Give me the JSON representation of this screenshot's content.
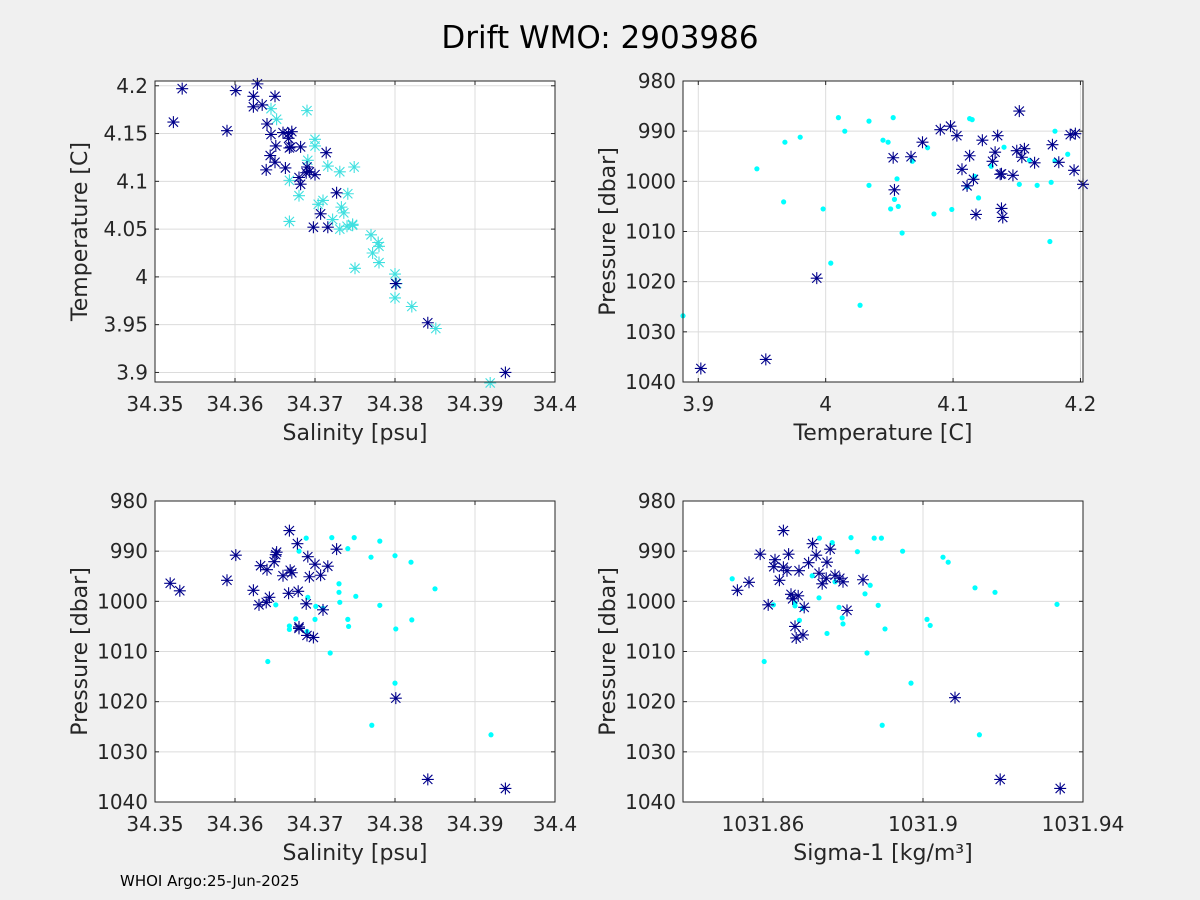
{
  "figure": {
    "title": "Drift WMO: 2903986",
    "footer": "WHOI Argo:25-Jun-2025",
    "colors": {
      "background": "#f0f0f0",
      "axes_bg": "#ffffff",
      "grid": "#dcdcdc",
      "axis": "#262626",
      "star": "#00008b",
      "dot": "#00ffff",
      "star_light": "#40e0e0"
    }
  },
  "chart_data": [
    {
      "type": "scatter",
      "title": "",
      "xlabel": "Salinity [psu]",
      "ylabel": "Temperature [C]",
      "xlim": [
        34.35,
        34.4
      ],
      "ylim": [
        3.89,
        4.205
      ],
      "y_reversed": false,
      "xticks": [
        34.35,
        34.36,
        34.37,
        34.38,
        34.39,
        34.4
      ],
      "xtick_labels": [
        "34.35",
        "34.36",
        "34.37",
        "34.38",
        "34.39",
        "34.4"
      ],
      "yticks": [
        3.9,
        3.95,
        4,
        4.05,
        4.1,
        4.15,
        4.2
      ],
      "ytick_labels": [
        "3.9",
        "3.95",
        "4",
        "4.05",
        "4.1",
        "4.15",
        "4.2"
      ],
      "grid": true,
      "series": [
        {
          "marker": "star",
          "color": "#00008b",
          "x": [
            34.3523,
            34.3534,
            34.359,
            34.3601,
            34.3623,
            34.3623,
            34.3628,
            34.3634,
            34.3639,
            34.3644,
            34.3645,
            34.365,
            34.365,
            34.3651,
            34.366,
            34.3663,
            34.3667,
            34.3668,
            34.367,
            34.3671,
            34.368,
            34.3682,
            34.3682,
            34.3689,
            34.369,
            34.3693,
            34.3698,
            34.37,
            34.3707,
            34.3714,
            34.3716,
            34.3727,
            34.3801,
            34.3841,
            34.3938,
            34.3667,
            34.364
          ],
          "y": [
            4.162,
            4.197,
            4.153,
            4.195,
            4.178,
            4.189,
            4.202,
            4.18,
            4.112,
            4.127,
            4.149,
            4.12,
            4.189,
            4.137,
            4.151,
            4.114,
            4.15,
            4.135,
            4.136,
            4.152,
            4.104,
            4.097,
            4.136,
            4.109,
            4.115,
            4.11,
            4.052,
            4.107,
            4.066,
            4.13,
            4.052,
            4.088,
            3.993,
            3.952,
            3.9,
            4.145,
            4.16
          ]
        },
        {
          "marker": "star",
          "color": "#40e0e0",
          "x": [
            34.3645,
            34.3652,
            34.3668,
            34.3668,
            34.368,
            34.369,
            34.3691,
            34.37,
            34.3704,
            34.3716,
            34.3722,
            34.3731,
            34.3731,
            34.3733,
            34.3736,
            34.374,
            34.3741,
            34.3747,
            34.3747,
            34.3749,
            34.375,
            34.377,
            34.3772,
            34.3779,
            34.378,
            34.378,
            34.38,
            34.38,
            34.3802,
            34.3821,
            34.3851,
            34.3919,
            34.371,
            34.37
          ],
          "y": [
            4.176,
            4.165,
            4.058,
            4.101,
            4.085,
            4.174,
            4.122,
            4.144,
            4.076,
            4.116,
            4.06,
            4.05,
            4.11,
            4.073,
            4.067,
            4.053,
            4.087,
            4.055,
            4.054,
            4.115,
            4.009,
            4.044,
            4.025,
            4.036,
            4.032,
            4.015,
            3.978,
            4.003,
            3.993,
            3.969,
            3.946,
            3.889,
            4.08,
            4.137
          ]
        }
      ]
    },
    {
      "type": "scatter",
      "title": "",
      "xlabel": "Temperature [C]",
      "ylabel": "Pressure [dbar]",
      "xlim": [
        3.888,
        4.202
      ],
      "ylim": [
        980,
        1040
      ],
      "y_reversed": true,
      "xticks": [
        3.9,
        4,
        4.1,
        4.2
      ],
      "xtick_labels": [
        "3.9",
        "4",
        "4.1",
        "4.2"
      ],
      "yticks": [
        980,
        990,
        1000,
        1010,
        1020,
        1030,
        1040
      ],
      "ytick_labels": [
        "980",
        "990",
        "1000",
        "1010",
        "1020",
        "1030",
        "1040"
      ],
      "grid": true,
      "series": [
        {
          "marker": "star",
          "color": "#00008b",
          "x": [
            3.902,
            3.953,
            3.993,
            4.053,
            4.054,
            4.067,
            4.076,
            4.09,
            4.098,
            4.103,
            4.107,
            4.111,
            4.113,
            4.116,
            4.118,
            4.123,
            4.131,
            4.133,
            4.135,
            4.137,
            4.138,
            4.139,
            4.138,
            4.147,
            4.15,
            4.152,
            4.154,
            4.156,
            4.164,
            4.178,
            4.183,
            4.192,
            4.195,
            4.196,
            4.202
          ],
          "y": [
            1037.3,
            1035.5,
            1019.3,
            995.3,
            1001.7,
            995.1,
            992.2,
            989.7,
            989.0,
            990.9,
            997.6,
            1000.9,
            994.9,
            999.6,
            1006.6,
            991.8,
            996.0,
            994.2,
            990.9,
            998.6,
            1005.4,
            1007.2,
            998.5,
            998.8,
            993.9,
            986.0,
            995.2,
            993.5,
            996.3,
            992.7,
            996.2,
            990.7,
            997.8,
            990.5,
            1000.6
          ]
        },
        {
          "marker": "dot",
          "color": "#00ffff",
          "x": [
            3.888,
            3.946,
            3.967,
            3.968,
            3.98,
            3.998,
            4.004,
            4.01,
            4.015,
            4.027,
            4.034,
            4.034,
            4.045,
            4.049,
            4.051,
            4.053,
            4.054,
            4.056,
            4.057,
            4.06,
            4.068,
            4.08,
            4.085,
            4.099,
            4.111,
            4.113,
            4.115,
            4.117,
            4.12,
            4.13,
            4.14,
            4.152,
            4.16,
            4.166,
            4.176,
            4.177,
            4.18,
            4.18,
            4.19
          ],
          "y": [
            1026.8,
            997.5,
            1004.1,
            992.2,
            991.2,
            1005.5,
            1016.3,
            987.3,
            990.0,
            1024.7,
            988.0,
            1000.8,
            991.8,
            992.2,
            1005.5,
            987.3,
            1003.6,
            999.5,
            1005.0,
            1010.3,
            996.0,
            993.3,
            1006.5,
            1005.6,
            1001.1,
            987.5,
            987.7,
            999.0,
            1003.3,
            997.0,
            993.2,
            1000.6,
            995.8,
            1000.8,
            1012.0,
            1000.2,
            990.0,
            995.9,
            994.6
          ]
        }
      ]
    },
    {
      "type": "scatter",
      "title": "",
      "xlabel": "Salinity [psu]",
      "ylabel": "Pressure [dbar]",
      "xlim": [
        34.35,
        34.4
      ],
      "ylim": [
        980,
        1040
      ],
      "y_reversed": true,
      "xticks": [
        34.35,
        34.36,
        34.37,
        34.38,
        34.39,
        34.4
      ],
      "xtick_labels": [
        "34.35",
        "34.36",
        "34.37",
        "34.38",
        "34.39",
        "34.4"
      ],
      "yticks": [
        980,
        990,
        1000,
        1010,
        1020,
        1030,
        1040
      ],
      "ytick_labels": [
        "980",
        "990",
        "1000",
        "1010",
        "1020",
        "1030",
        "1040"
      ],
      "grid": true,
      "series": [
        {
          "marker": "star",
          "color": "#00008b",
          "x": [
            34.3519,
            34.3531,
            34.359,
            34.3601,
            34.3623,
            34.363,
            34.3632,
            34.3639,
            34.364,
            34.3643,
            34.3649,
            34.3651,
            34.3652,
            34.366,
            34.3667,
            34.3668,
            34.3669,
            34.3671,
            34.3678,
            34.3679,
            34.368,
            34.368,
            34.3689,
            34.369,
            34.3691,
            34.3693,
            34.3698,
            34.37,
            34.3707,
            34.371,
            34.3716,
            34.3727,
            34.3801,
            34.3841,
            34.3938
          ],
          "y": [
            996.4,
            997.9,
            995.8,
            990.8,
            997.8,
            1000.7,
            992.9,
            1000.2,
            993.7,
            999.2,
            992.1,
            990.7,
            990.2,
            994.9,
            998.4,
            985.9,
            993.8,
            994.3,
            988.5,
            998.0,
            1005.4,
            1005.1,
            1000.5,
            1006.8,
            991.1,
            995.1,
            1007.2,
            992.6,
            994.8,
            1001.7,
            993.0,
            989.6,
            1019.3,
            1035.5,
            1037.3
          ]
        },
        {
          "marker": "dot",
          "color": "#00ffff",
          "x": [
            34.3641,
            34.3651,
            34.3668,
            34.3668,
            34.3676,
            34.368,
            34.3689,
            34.369,
            34.3691,
            34.37,
            34.3701,
            34.371,
            34.3719,
            34.3721,
            34.373,
            34.3731,
            34.3741,
            34.3741,
            34.3742,
            34.3749,
            34.3751,
            34.377,
            34.3771,
            34.3781,
            34.3781,
            34.38,
            34.38,
            34.3801,
            34.382,
            34.3821,
            34.385,
            34.392,
            34.373
          ],
          "y": [
            1012.0,
            1000.7,
            1004.9,
            1005.6,
            1003.5,
            990.0,
            987.4,
            1006.0,
            999.2,
            1003.6,
            1001.0,
            1001.4,
            1010.3,
            987.3,
            996.5,
            1000.2,
            989.5,
            1003.6,
            1005.0,
            987.3,
            999.0,
            991.2,
            1024.7,
            988.0,
            1000.8,
            990.9,
            1016.3,
            1005.5,
            992.2,
            1003.7,
            997.5,
            1026.6,
            998.2
          ]
        }
      ]
    },
    {
      "type": "scatter",
      "title": "",
      "xlabel": "Sigma-1 [kg/m³]",
      "ylabel": "Pressure [dbar]",
      "xlim": [
        1031.84,
        1031.94
      ],
      "ylim": [
        980,
        1040
      ],
      "y_reversed": true,
      "xticks": [
        1031.86,
        1031.9,
        1031.94
      ],
      "xtick_labels": [
        "1031.86",
        "1031.9",
        "1031.94"
      ],
      "yticks": [
        980,
        990,
        1000,
        1010,
        1020,
        1030,
        1040
      ],
      "ytick_labels": [
        "980",
        "990",
        "1000",
        "1010",
        "1020",
        "1030",
        "1040"
      ],
      "grid": true,
      "series": [
        {
          "marker": "star",
          "color": "#00008b",
          "x": [
            1031.8536,
            1031.8565,
            1031.8593,
            1031.8613,
            1031.8627,
            1031.863,
            1031.8641,
            1031.8651,
            1031.8651,
            1031.866,
            1031.8664,
            1031.867,
            1031.8674,
            1031.868,
            1031.8683,
            1031.8688,
            1031.869,
            1031.87,
            1031.8703,
            1031.8714,
            1031.8724,
            1031.8733,
            1031.874,
            1031.8748,
            1031.8758,
            1031.876,
            1031.8768,
            1031.878,
            1031.8792,
            1031.88,
            1031.881,
            1031.908,
            1031.9193,
            1031.9343,
            1031.885
          ],
          "y": [
            997.8,
            996.2,
            990.6,
            1000.7,
            993.1,
            991.7,
            995.8,
            993.2,
            985.9,
            993.9,
            990.6,
            998.6,
            999.5,
            1005.0,
            1007.3,
            998.9,
            993.9,
            1006.7,
            1001.2,
            992.3,
            988.5,
            990.8,
            994.4,
            996.5,
            995.4,
            992.2,
            989.6,
            994.8,
            995.4,
            996.1,
            1001.8,
            1019.2,
            1035.5,
            1037.3,
            995.7
          ]
        },
        {
          "marker": "dot",
          "color": "#00ffff",
          "x": [
            1031.8523,
            1031.8603,
            1031.8626,
            1031.868,
            1031.868,
            1031.8691,
            1031.8699,
            1031.8723,
            1031.8741,
            1031.876,
            1031.8773,
            1031.878,
            1031.879,
            1031.8798,
            1031.88,
            1031.882,
            1031.8836,
            1031.8855,
            1031.886,
            1031.8868,
            1031.8878,
            1031.8888,
            1031.8896,
            1031.8898,
            1031.8905,
            1031.8949,
            1031.897,
            1031.901,
            1031.9018,
            1031.905,
            1031.9063,
            1031.913,
            1031.9141,
            1031.918,
            1031.9335,
            1031.874
          ],
          "y": [
            995.5,
            1012.0,
            1000.7,
            1000.3,
            1000.9,
            1003.8,
            1001.4,
            994.9,
            987.4,
            1006.4,
            988.3,
            996.1,
            1001.2,
            1003.3,
            1004.5,
            987.3,
            990.1,
            998.5,
            1010.3,
            996.8,
            987.4,
            1000.8,
            987.4,
            1024.7,
            1005.5,
            990.0,
            1016.3,
            1003.6,
            1004.8,
            991.2,
            992.2,
            997.3,
            1026.6,
            998.2,
            1000.6,
            999.3
          ]
        }
      ]
    }
  ]
}
